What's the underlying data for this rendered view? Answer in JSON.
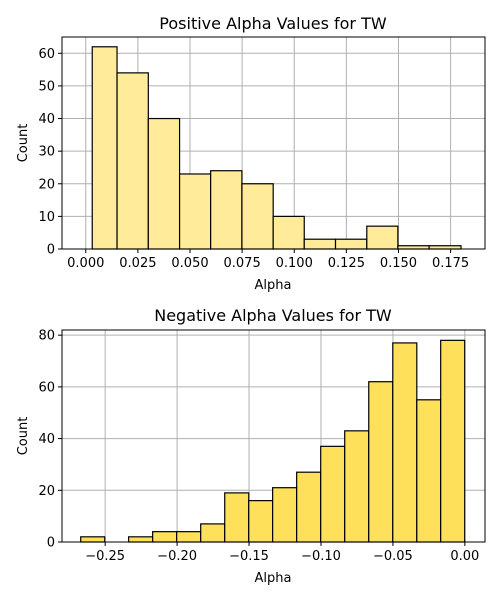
{
  "chart_data": [
    {
      "type": "bar",
      "title": "Positive Alpha Values for TW",
      "xlabel": "Alpha",
      "ylabel": "Count",
      "xlim": [
        -0.0114,
        0.1915
      ],
      "ylim": [
        0,
        65
      ],
      "xticks": [
        0.0,
        0.025,
        0.05,
        0.075,
        0.1,
        0.125,
        0.15,
        0.175
      ],
      "xtick_labels": [
        "0.000",
        "0.025",
        "0.050",
        "0.075",
        "0.100",
        "0.125",
        "0.150",
        "0.175"
      ],
      "yticks": [
        0,
        10,
        20,
        30,
        40,
        50,
        60
      ],
      "ytick_labels": [
        "0",
        "10",
        "20",
        "30",
        "40",
        "50",
        "60"
      ],
      "grid": true,
      "bar_color": "#ffeb99",
      "bin_edges": [
        0.0031,
        0.015,
        0.03,
        0.045,
        0.0599,
        0.0749,
        0.0899,
        0.1048,
        0.1198,
        0.1348,
        0.1497,
        0.1647,
        0.18
      ],
      "values": [
        62,
        54,
        40,
        23,
        24,
        20,
        10,
        3,
        3,
        7,
        1,
        1
      ]
    },
    {
      "type": "bar",
      "title": "Negative Alpha Values for TW",
      "xlabel": "Alpha",
      "ylabel": "Count",
      "xlim": [
        -0.28,
        0.014
      ],
      "ylim": [
        0,
        82
      ],
      "xticks": [
        -0.25,
        -0.2,
        -0.15,
        -0.1,
        -0.05,
        0.0
      ],
      "xtick_labels": [
        "−0.25",
        "−0.20",
        "−0.15",
        "−0.10",
        "−0.05",
        "0.00"
      ],
      "yticks": [
        0,
        20,
        40,
        60,
        80
      ],
      "ytick_labels": [
        "0",
        "20",
        "40",
        "60",
        "80"
      ],
      "grid": true,
      "bar_color": "#ffe05a",
      "bin_edges": [
        -0.267,
        -0.2503,
        -0.2337,
        -0.217,
        -0.2003,
        -0.1836,
        -0.1669,
        -0.1502,
        -0.1336,
        -0.1169,
        -0.1002,
        -0.0835,
        -0.0668,
        -0.0501,
        -0.0334,
        -0.0168,
        -0.0001
      ],
      "values": [
        2,
        0,
        2,
        4,
        4,
        7,
        19,
        16,
        21,
        27,
        37,
        43,
        62,
        77,
        55,
        78
      ]
    }
  ]
}
